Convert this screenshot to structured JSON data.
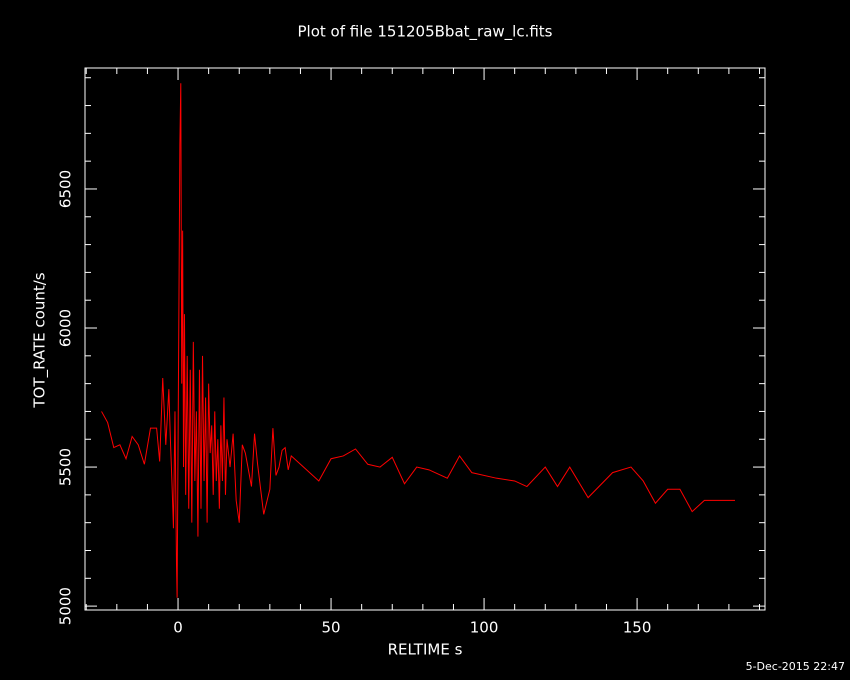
{
  "chart_data": {
    "type": "line",
    "title": "Plot of file 151205Bbat_raw_lc.fits",
    "x_label": "RELTIME  s",
    "y_label": "TOT_RATE  count/s",
    "timestamp": "5-Dec-2015 22:47",
    "color": "#ff0000",
    "xlim": [
      -30.4,
      191.8
    ],
    "ylim": [
      4986,
      6935
    ],
    "xticks": [
      0,
      50,
      100,
      150
    ],
    "yticks": [
      5000,
      5500,
      6000,
      6500
    ],
    "xminorticks": [
      -30,
      -20,
      -10,
      10,
      20,
      30,
      40,
      60,
      70,
      80,
      90,
      110,
      120,
      130,
      140,
      160,
      170,
      180,
      190
    ],
    "yminorticks": [
      5100,
      5200,
      5300,
      5400,
      5600,
      5700,
      5800,
      5900,
      6100,
      6200,
      6300,
      6400,
      6600,
      6700,
      6800,
      6900
    ],
    "x": [
      -25,
      -23,
      -21,
      -19,
      -17,
      -15,
      -13,
      -11,
      -9,
      -7,
      -6,
      -5,
      -4,
      -3,
      -2.5,
      -2,
      -1.5,
      -1,
      -0.5,
      -0.3,
      0.3,
      0.6,
      0.9,
      1.2,
      1.5,
      1.8,
      2.1,
      2.5,
      3,
      3.5,
      4,
      4.5,
      5,
      5.5,
      6,
      6.5,
      7,
      7.5,
      8,
      8.5,
      9,
      9.5,
      10,
      10.5,
      11,
      11.5,
      12,
      12.5,
      13,
      13.5,
      14,
      14.5,
      15,
      15.5,
      16,
      17,
      18,
      19,
      20,
      21,
      22,
      24,
      25,
      26,
      28,
      30,
      31,
      32,
      33,
      34,
      35,
      36,
      37,
      40,
      46,
      50,
      54,
      58,
      62,
      66,
      70,
      74,
      78,
      82,
      88,
      92,
      96,
      104,
      110,
      114,
      120,
      124,
      128,
      134,
      142,
      148,
      152,
      156,
      160,
      164,
      168,
      172,
      182
    ],
    "values": [
      5700,
      5660,
      5570,
      5580,
      5530,
      5610,
      5580,
      5510,
      5640,
      5640,
      5520,
      5820,
      5580,
      5780,
      5600,
      5450,
      5280,
      5700,
      5150,
      5030,
      6100,
      6660,
      6880,
      5800,
      6350,
      5500,
      6050,
      5400,
      5900,
      5350,
      5850,
      5300,
      5950,
      5450,
      5700,
      5250,
      5850,
      5350,
      5900,
      5450,
      5750,
      5300,
      5800,
      5550,
      5650,
      5400,
      5700,
      5450,
      5600,
      5350,
      5650,
      5450,
      5750,
      5400,
      5600,
      5500,
      5620,
      5380,
      5300,
      5580,
      5550,
      5430,
      5620,
      5510,
      5330,
      5420,
      5640,
      5470,
      5500,
      5560,
      5570,
      5490,
      5540,
      5510,
      5450,
      5530,
      5540,
      5565,
      5510,
      5500,
      5535,
      5440,
      5500,
      5490,
      5460,
      5540,
      5480,
      5460,
      5450,
      5430,
      5500,
      5430,
      5500,
      5390,
      5480,
      5500,
      5450,
      5370,
      5420,
      5420,
      5340,
      5380,
      5380
    ]
  }
}
